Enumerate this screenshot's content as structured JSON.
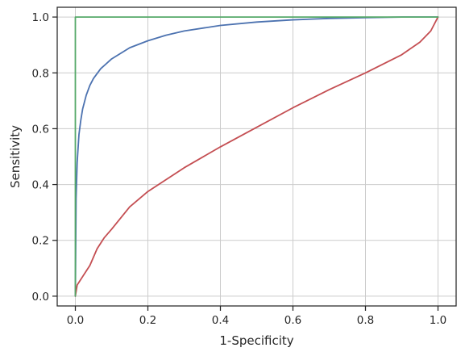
{
  "chart_data": {
    "type": "line",
    "title": "",
    "xlabel": "1-Specificity",
    "ylabel": "Sensitivity",
    "xlim": [
      -0.05,
      1.05
    ],
    "ylim": [
      -0.035,
      1.035
    ],
    "xticks": [
      0.0,
      0.2,
      0.4,
      0.6,
      0.8,
      1.0
    ],
    "yticks": [
      0.0,
      0.2,
      0.4,
      0.6,
      0.8,
      1.0
    ],
    "xtick_labels": [
      "0.0",
      "0.2",
      "0.4",
      "0.6",
      "0.8",
      "1.0"
    ],
    "ytick_labels": [
      "0.0",
      "0.2",
      "0.4",
      "0.6",
      "0.8",
      "1.0"
    ],
    "grid": true,
    "legend": null,
    "series": [
      {
        "color": "#4c72b0",
        "x": [
          0,
          0.002,
          0.005,
          0.01,
          0.015,
          0.02,
          0.03,
          0.04,
          0.05,
          0.07,
          0.1,
          0.15,
          0.2,
          0.25,
          0.3,
          0.4,
          0.5,
          0.6,
          0.7,
          0.8,
          0.9,
          1.0
        ],
        "y": [
          0,
          0.35,
          0.48,
          0.58,
          0.63,
          0.67,
          0.72,
          0.755,
          0.78,
          0.815,
          0.85,
          0.89,
          0.915,
          0.935,
          0.95,
          0.97,
          0.982,
          0.99,
          0.995,
          0.998,
          1.0,
          1.0
        ]
      },
      {
        "color": "#c44e52",
        "x": [
          0,
          0.005,
          0.01,
          0.02,
          0.03,
          0.04,
          0.05,
          0.06,
          0.08,
          0.1,
          0.15,
          0.2,
          0.3,
          0.4,
          0.5,
          0.6,
          0.7,
          0.8,
          0.9,
          0.95,
          0.98,
          1.0
        ],
        "y": [
          0,
          0.04,
          0.05,
          0.07,
          0.09,
          0.11,
          0.14,
          0.17,
          0.21,
          0.24,
          0.32,
          0.375,
          0.46,
          0.535,
          0.605,
          0.675,
          0.74,
          0.8,
          0.865,
          0.91,
          0.95,
          1.0
        ]
      },
      {
        "color": "#55a868",
        "x": [
          0,
          0,
          1.0
        ],
        "y": [
          0,
          1.0,
          1.0
        ]
      }
    ]
  }
}
